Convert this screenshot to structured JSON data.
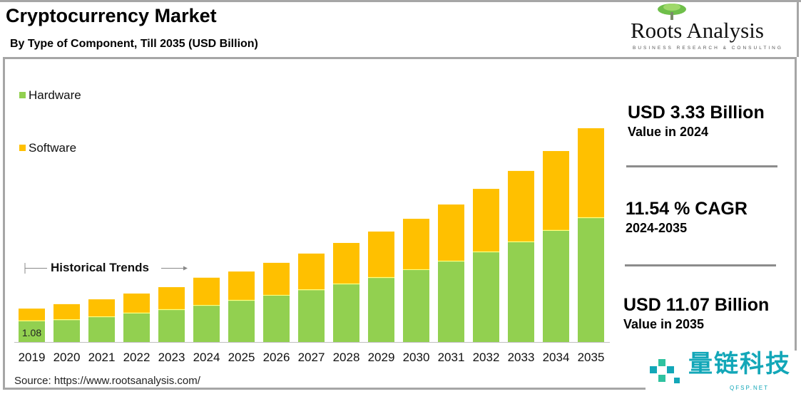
{
  "header": {
    "title": "Cryptocurrency Market",
    "subtitle": "By Type of Component, Till 2035 (USD Billion)"
  },
  "logo": {
    "name": "Roots Analysis",
    "tagline": "BUSINESS RESEARCH & CONSULTING"
  },
  "stats": [
    {
      "value": "USD 3.33 Billion",
      "label": "Value in 2024"
    },
    {
      "value": "11.54 % CAGR",
      "label": "2024-2035"
    },
    {
      "value": "USD 11.07 Billion",
      "label": "Value in 2035"
    }
  ],
  "annotation": "Historical Trends",
  "source": "Source: https://www.rootsanalysis.com/",
  "watermark": {
    "text": "量链科技",
    "sub": "QFSP.NET"
  },
  "colors": {
    "hardware": "#92d050",
    "software": "#ffc000",
    "frame": "#a6a6a6"
  },
  "chart_data": {
    "type": "bar",
    "stacked": true,
    "categories": [
      "2019",
      "2020",
      "2021",
      "2022",
      "2023",
      "2024",
      "2025",
      "2026",
      "2027",
      "2028",
      "2029",
      "2030",
      "2031",
      "2032",
      "2033",
      "2034",
      "2035"
    ],
    "series": [
      {
        "name": "Hardware",
        "color": "#92d050",
        "values": [
          1.08,
          1.14,
          1.29,
          1.48,
          1.66,
          1.88,
          2.14,
          2.4,
          2.69,
          2.99,
          3.32,
          3.73,
          4.17,
          4.65,
          5.17,
          5.76,
          6.42
        ]
      },
      {
        "name": "Software",
        "color": "#ffc000",
        "values": [
          0.65,
          0.82,
          0.92,
          1.03,
          1.18,
          1.45,
          1.51,
          1.7,
          1.89,
          2.14,
          2.4,
          2.65,
          2.95,
          3.28,
          3.69,
          4.13,
          4.65
        ]
      }
    ],
    "data_labels": [
      {
        "series": "Hardware",
        "category": "2019",
        "text": "1.08"
      }
    ],
    "legend": "top-left",
    "grid": false,
    "y_axis_visible": false,
    "ylim": [
      0,
      11.07
    ]
  }
}
